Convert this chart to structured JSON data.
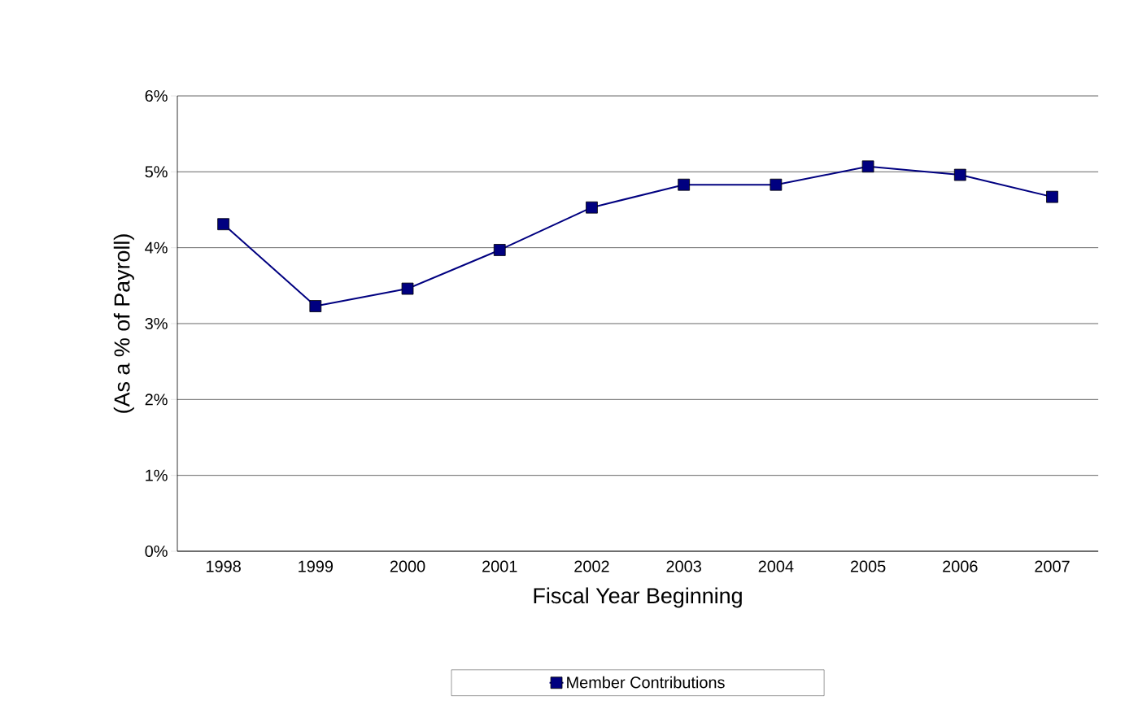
{
  "chart_data": {
    "type": "line",
    "xlabel": "Fiscal Year Beginning",
    "ylabel": "(As a % of Payroll)",
    "categories": [
      "1998",
      "1999",
      "2000",
      "2001",
      "2002",
      "2003",
      "2004",
      "2005",
      "2006",
      "2007"
    ],
    "series": [
      {
        "name": "Member Contributions",
        "color": "#000080",
        "values": [
          4.31,
          3.23,
          3.46,
          3.97,
          4.53,
          4.83,
          4.83,
          5.07,
          4.96,
          4.67
        ]
      }
    ],
    "ylim": [
      0,
      6
    ],
    "yticks": [
      {
        "value": 0,
        "label": "0%"
      },
      {
        "value": 1,
        "label": "1%"
      },
      {
        "value": 2,
        "label": "2%"
      },
      {
        "value": 3,
        "label": "3%"
      },
      {
        "value": 4,
        "label": "4%"
      },
      {
        "value": 5,
        "label": "5%"
      },
      {
        "value": 6,
        "label": "6%"
      }
    ],
    "grid": "y",
    "legend": "bottom",
    "marker": "square",
    "line_style": "solid"
  }
}
